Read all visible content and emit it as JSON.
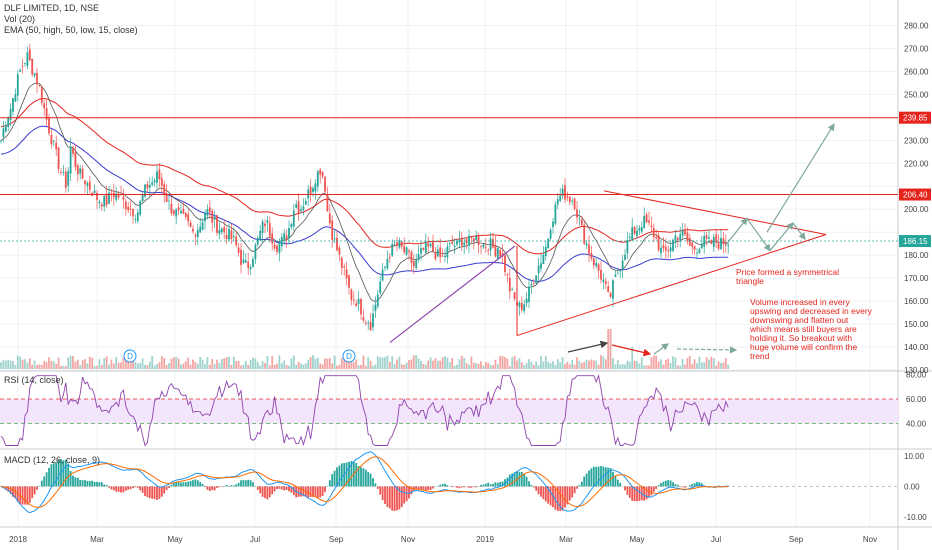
{
  "legend": {
    "main": "DLF LIMITED, 1D, NSE",
    "vol": "Vol (20)",
    "ema": "EMA (50, high, 50, low, 15, close)",
    "rsi": "RSI (14, close)",
    "macd": "MACD (12, 26, close, 9)"
  },
  "annotations": {
    "triangle_note": [
      "Price formed a symmetrical",
      "triangle"
    ],
    "volume_note": [
      "Volume increased in every",
      "upswing and decreased in every",
      "downswing and flatten out",
      "which means still buyers are",
      "holding it. So breakout with",
      "huge volume will confirm the",
      "trend"
    ]
  },
  "markers": [
    "D",
    "D"
  ],
  "colors": {
    "up": "#26a69a",
    "down": "#ef5350",
    "ema_high": "#e5241e",
    "ema_low": "#3b3bd1",
    "ema_close": "#555555",
    "rsi": "#8e44ad",
    "macd": "#2196f3",
    "signal": "#ff6d00",
    "level": "#e5241e",
    "last": "#26a69a"
  },
  "chart_data": [
    {
      "type": "candlestick",
      "title": "DLF LIMITED, 1D, NSE",
      "x_ticks": [
        "2018",
        "Mar",
        "May",
        "Jul",
        "Sep",
        "Nov",
        "2019",
        "Mar",
        "May",
        "Jul",
        "Sep",
        "Nov"
      ],
      "y_ticks": [
        "130.00",
        "140.00",
        "150.00",
        "160.00",
        "170.00",
        "180.00",
        "190.00",
        "200.00",
        "210.00",
        "220.00",
        "230.00",
        "240.00",
        "250.00",
        "260.00",
        "270.00",
        "280.00"
      ],
      "ylim": [
        130,
        285
      ],
      "levels": [
        {
          "value": 239.85,
          "label": "239.85"
        },
        {
          "value": 206.4,
          "label": "206.40"
        }
      ],
      "last_price": {
        "value": 186.15,
        "label": "186.15"
      },
      "close_path_x": [
        0,
        5,
        10,
        15,
        20,
        25,
        28,
        31,
        34,
        40,
        46,
        52,
        57,
        62,
        67,
        70,
        75,
        80,
        86,
        92,
        97,
        100,
        106,
        112,
        118,
        124,
        131,
        137,
        142,
        147,
        153,
        158,
        164,
        168,
        172,
        177,
        182,
        187,
        193,
        200,
        206,
        210,
        216,
        222,
        228,
        234,
        238,
        241,
        244,
        247,
        251,
        256,
        262,
        266,
        270,
        276,
        282,
        288,
        295,
        300,
        306,
        312,
        316,
        321,
        325,
        327,
        333,
        340,
        347,
        351,
        357,
        362,
        365,
        368,
        371,
        376,
        380,
        384,
        388,
        393,
        398,
        403,
        408,
        414,
        420,
        425,
        431,
        437,
        442,
        447,
        452,
        457,
        462,
        468,
        474,
        480,
        485,
        490,
        495,
        498,
        503,
        510,
        515,
        520,
        525,
        530,
        535,
        541,
        547,
        550,
        555,
        558,
        564,
        569,
        574,
        579,
        584,
        589,
        594,
        599,
        604,
        609,
        614,
        619,
        623,
        628,
        633,
        638,
        643,
        648,
        653,
        658,
        663,
        669,
        675,
        681,
        686,
        691,
        696,
        700,
        705,
        710,
        715,
        720,
        725,
        730
      ],
      "close_path_y": [
        228,
        238,
        243,
        252,
        260,
        265,
        267,
        262,
        260,
        252,
        240,
        230,
        222,
        215,
        210,
        228,
        220,
        215,
        212,
        208,
        205,
        204,
        203,
        207,
        206,
        203,
        200,
        198,
        205,
        210,
        212,
        215,
        208,
        203,
        200,
        198,
        196,
        194,
        190,
        193,
        200,
        197,
        193,
        191,
        189,
        186,
        182,
        178,
        176,
        175,
        178,
        184,
        192,
        195,
        190,
        184,
        186,
        190,
        203,
        200,
        205,
        210,
        215,
        218,
        210,
        200,
        188,
        178,
        168,
        162,
        160,
        156,
        152,
        152,
        150,
        160,
        168,
        173,
        180,
        183,
        185,
        182,
        180,
        175,
        180,
        183,
        183,
        180,
        178,
        182,
        185,
        184,
        187,
        185,
        188,
        186,
        184,
        185,
        182,
        184,
        178,
        165,
        160,
        157,
        160,
        165,
        172,
        178,
        185,
        193,
        200,
        205,
        207,
        205,
        204,
        195,
        188,
        182,
        177,
        173,
        168,
        160,
        168,
        174,
        180,
        186,
        190,
        192,
        195,
        193,
        190,
        185,
        180,
        183,
        188,
        190,
        187,
        183,
        183,
        185,
        186,
        185,
        186,
        185,
        186,
        186
      ]
    },
    {
      "type": "bar",
      "title": "Vol (20)",
      "note": "volume increases on upswings, decreases on downswings"
    },
    {
      "type": "line",
      "title": "RSI (14, close)",
      "y_ticks": [
        "40.00",
        "60.00",
        "80.00"
      ],
      "ylim": [
        20,
        82
      ],
      "bands": [
        40,
        60
      ]
    },
    {
      "type": "line",
      "title": "MACD (12, 26, close, 9)",
      "y_ticks": [
        "-10.00",
        "0.00",
        "10.00"
      ],
      "ylim": [
        -13,
        12
      ]
    }
  ]
}
